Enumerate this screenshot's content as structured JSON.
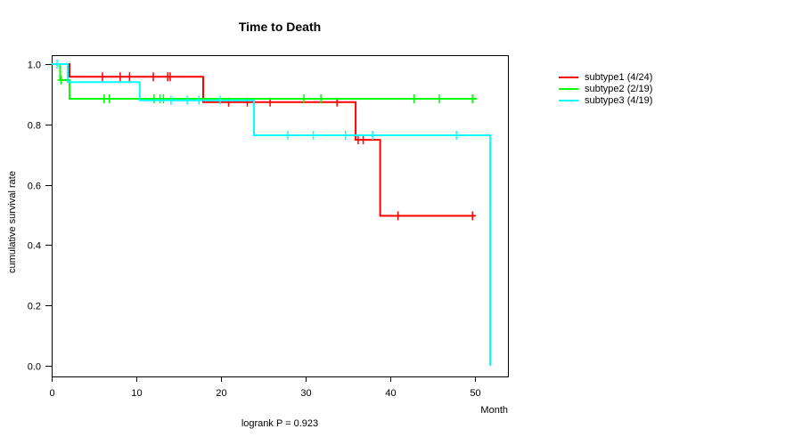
{
  "chart_data": {
    "type": "line",
    "subtype": "kaplan-meier-step-curves",
    "title": "Time to Death",
    "xlabel": "Month",
    "ylabel": "cumulative survival rate",
    "footnote": "logrank P = 0.923",
    "xlim": [
      0,
      54
    ],
    "ylim": [
      0.0,
      1.0
    ],
    "xticks": [
      0,
      10,
      20,
      30,
      40,
      50
    ],
    "yticks": [
      "0.0",
      "0.2",
      "0.4",
      "0.6",
      "0.8",
      "1.0"
    ],
    "grid": false,
    "legend_position": "right-outside",
    "axis_color": "#000000",
    "background_color": "#ffffff",
    "series": [
      {
        "name": "subtype1 (4/24)",
        "color": "#ff0000",
        "steps": [
          [
            0,
            1.0
          ],
          [
            2.1,
            1.0
          ],
          [
            2.1,
            0.958
          ],
          [
            17.9,
            0.958
          ],
          [
            17.9,
            0.874
          ],
          [
            35.9,
            0.874
          ],
          [
            35.9,
            0.749
          ],
          [
            38.8,
            0.749
          ],
          [
            38.8,
            0.497
          ],
          [
            50.0,
            0.497
          ]
        ],
        "censor_marks": [
          [
            6.0,
            0.958
          ],
          [
            8.1,
            0.958
          ],
          [
            9.2,
            0.958
          ],
          [
            12.0,
            0.958
          ],
          [
            13.7,
            0.958
          ],
          [
            14.0,
            0.958
          ],
          [
            20.9,
            0.874
          ],
          [
            23.1,
            0.874
          ],
          [
            25.8,
            0.874
          ],
          [
            33.7,
            0.874
          ],
          [
            36.2,
            0.749
          ],
          [
            36.8,
            0.749
          ],
          [
            40.9,
            0.497
          ],
          [
            49.7,
            0.497
          ]
        ]
      },
      {
        "name": "subtype2 (2/19)",
        "color": "#00ff00",
        "steps": [
          [
            0,
            1.0
          ],
          [
            1.0,
            1.0
          ],
          [
            1.0,
            0.947
          ],
          [
            2.1,
            0.947
          ],
          [
            2.1,
            0.885
          ],
          [
            50.2,
            0.885
          ]
        ],
        "censor_marks": [
          [
            1.1,
            0.947
          ],
          [
            6.2,
            0.885
          ],
          [
            6.8,
            0.885
          ],
          [
            12.1,
            0.885
          ],
          [
            12.8,
            0.885
          ],
          [
            13.2,
            0.885
          ],
          [
            29.8,
            0.885
          ],
          [
            31.8,
            0.885
          ],
          [
            42.8,
            0.885
          ],
          [
            45.8,
            0.885
          ],
          [
            49.7,
            0.885
          ]
        ]
      },
      {
        "name": "subtype3 (4/19)",
        "color": "#00ffff",
        "steps": [
          [
            0,
            1.0
          ],
          [
            1.9,
            1.0
          ],
          [
            1.9,
            0.94
          ],
          [
            10.4,
            0.94
          ],
          [
            10.4,
            0.88
          ],
          [
            23.9,
            0.88
          ],
          [
            23.9,
            0.764
          ],
          [
            51.8,
            0.764
          ],
          [
            51.8,
            0.0
          ]
        ],
        "censor_marks": [
          [
            0.63,
            1.0
          ],
          [
            14.1,
            0.88
          ],
          [
            16.0,
            0.88
          ],
          [
            17.4,
            0.88
          ],
          [
            19.9,
            0.88
          ],
          [
            27.9,
            0.764
          ],
          [
            30.9,
            0.764
          ],
          [
            34.7,
            0.764
          ],
          [
            37.9,
            0.764
          ],
          [
            47.8,
            0.764
          ]
        ]
      }
    ]
  }
}
